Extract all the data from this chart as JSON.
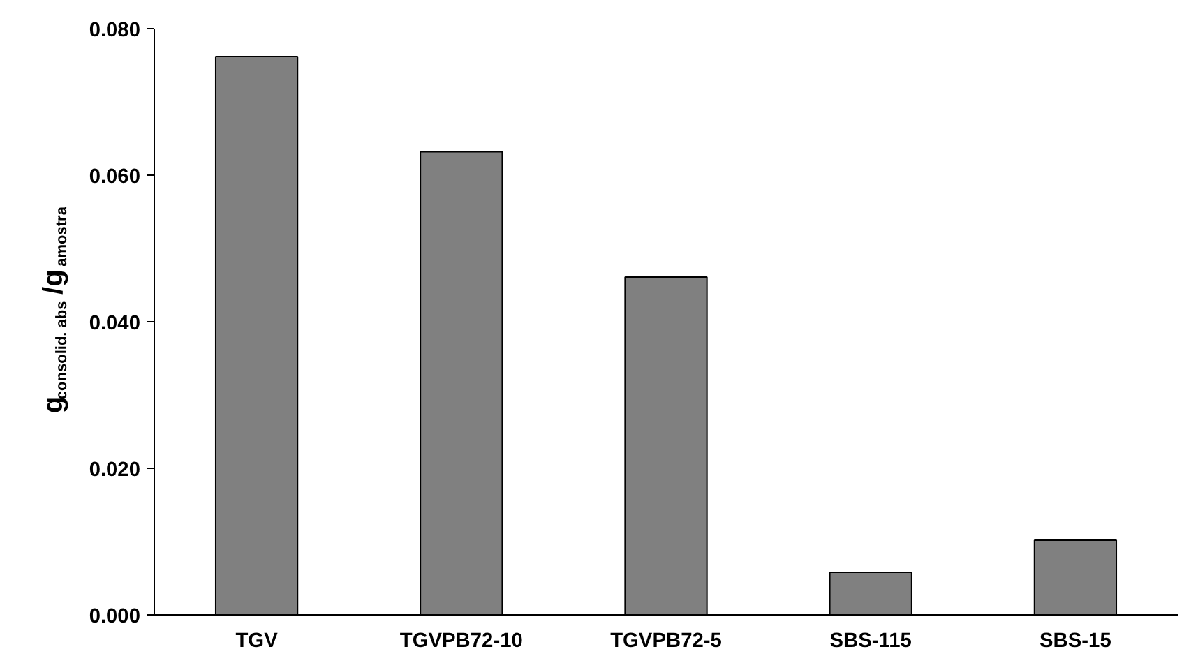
{
  "chart_data": {
    "type": "bar",
    "ylabel": "g$_{consolid. abs}$/g$_{amostra}$",
    "categories": [
      "TGV",
      "TGVPB72-10",
      "TGVPB72-5",
      "SBS-115",
      "SBS-15"
    ],
    "values": [
      0.0762,
      0.0632,
      0.0461,
      0.0058,
      0.0102
    ],
    "color": "#808080",
    "ylim": [
      0,
      0.08
    ],
    "yticks": [
      {
        "value": 0,
        "label": "0.000"
      },
      {
        "value": 0.02,
        "label": "0.020"
      },
      {
        "value": 0.04,
        "label": "0.040"
      },
      {
        "value": 0.06,
        "label": "0.060"
      },
      {
        "value": 0.08,
        "label": "0.080"
      }
    ],
    "grid": false
  }
}
